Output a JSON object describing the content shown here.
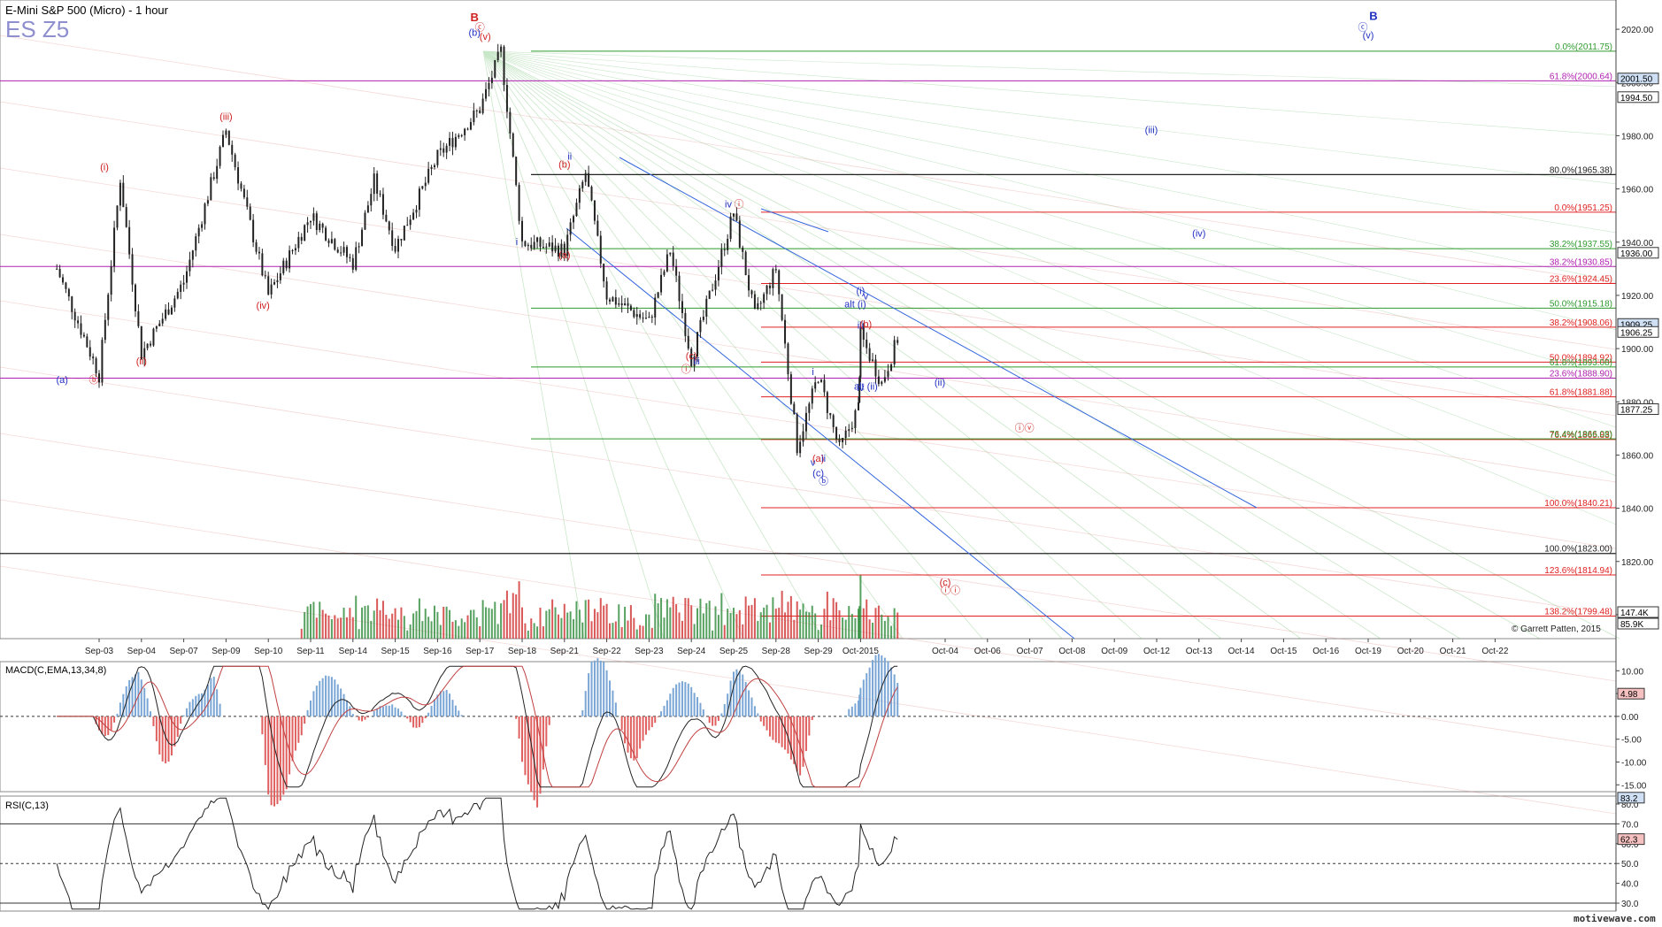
{
  "header": {
    "title": "E-Mini S&P 500 (Micro) - 1 hour",
    "symbol": "ES Z5"
  },
  "footer": {
    "copyright": "© Garrett Patten, 2015",
    "brand": "motivewave.com"
  },
  "colors": {
    "up": "#2e8b3a",
    "down": "#d03030",
    "candle": "#222222",
    "fib_green": "#2e9a2e",
    "fib_red": "#e02020",
    "fib_purple": "#b020b0",
    "wave_red": "#d02020",
    "wave_blue": "#2030c0",
    "channel": "#3366dd",
    "macd_hist_up": "#7aa6d6",
    "macd_hist_down": "#e06060"
  },
  "chart_data": [
    {
      "type": "candlestick",
      "panel": "price",
      "title": "E-Mini S&P 500 (Micro) - 1 hour",
      "ylim": [
        1791,
        2031
      ],
      "yticks": [
        2020.0,
        2000.0,
        1980.0,
        1960.0,
        1940.0,
        1920.0,
        1900.0,
        1880.0,
        1860.0,
        1840.0,
        1820.0,
        1800.0
      ],
      "x_labels": [
        "Sep-03",
        "Sep-04",
        "Sep-07",
        "Sep-09",
        "Sep-10",
        "Sep-11",
        "Sep-14",
        "Sep-15",
        "Sep-16",
        "Sep-17",
        "Sep-18",
        "Sep-21",
        "Sep-22",
        "Sep-23",
        "Sep-24",
        "Sep-25",
        "Sep-28",
        "Sep-29",
        "Oct-2015",
        "Oct-04",
        "Oct-06",
        "Oct-07",
        "Oct-08",
        "Oct-09",
        "Oct-12",
        "Oct-13",
        "Oct-14",
        "Oct-15",
        "Oct-16",
        "Oct-19",
        "Oct-20",
        "Oct-21",
        "Oct-22"
      ],
      "price_path": [
        {
          "date": "Sep-02",
          "close": 1930
        },
        {
          "date": "Sep-03",
          "close": 1890
        },
        {
          "date": "Sep-03",
          "close": 1964
        },
        {
          "date": "Sep-04",
          "close": 1898
        },
        {
          "date": "Sep-07",
          "close": 1925
        },
        {
          "date": "Sep-09",
          "close": 1982
        },
        {
          "date": "Sep-10",
          "close": 1920
        },
        {
          "date": "Sep-11",
          "close": 1950
        },
        {
          "date": "Sep-14",
          "close": 1932
        },
        {
          "date": "Sep-14",
          "close": 1963
        },
        {
          "date": "Sep-15",
          "close": 1938
        },
        {
          "date": "Sep-16",
          "close": 1972
        },
        {
          "date": "Sep-17",
          "close": 1990
        },
        {
          "date": "Sep-17",
          "close": 2011.75
        },
        {
          "date": "Sep-18",
          "close": 1940
        },
        {
          "date": "Sep-21",
          "close": 1937
        },
        {
          "date": "Sep-21",
          "close": 1966
        },
        {
          "date": "Sep-22",
          "close": 1920
        },
        {
          "date": "Sep-23",
          "close": 1910
        },
        {
          "date": "Sep-23",
          "close": 1937
        },
        {
          "date": "Sep-24",
          "close": 1896
        },
        {
          "date": "Sep-25",
          "close": 1951.25
        },
        {
          "date": "Sep-25",
          "close": 1912
        },
        {
          "date": "Sep-28",
          "close": 1930
        },
        {
          "date": "Sep-28",
          "close": 1863
        },
        {
          "date": "Sep-29",
          "close": 1890
        },
        {
          "date": "Sep-29",
          "close": 1862
        },
        {
          "date": "Sep-29",
          "close": 1878
        },
        {
          "date": "Sep-30",
          "close": 1905
        },
        {
          "date": "Sep-30",
          "close": 1887
        },
        {
          "date": "Sep-30",
          "close": 1907
        }
      ],
      "price_tags": [
        {
          "label": "2001.50",
          "value": 2001.5,
          "style": "blue"
        },
        {
          "label": "1994.50",
          "value": 1994.5,
          "style": "plain"
        },
        {
          "label": "1936.00",
          "value": 1936.0,
          "style": "plain"
        },
        {
          "label": "1909.25",
          "value": 1909.25,
          "style": "blue"
        },
        {
          "label": "1906.25",
          "value": 1906.25,
          "style": "plain"
        },
        {
          "label": "1877.25",
          "value": 1877.25,
          "style": "plain"
        }
      ],
      "volume_tags": [
        {
          "label": "147.4K"
        },
        {
          "label": "85.9K"
        }
      ],
      "fib_levels": [
        {
          "label": "0.0%(2011.75)",
          "value": 2011.75,
          "color": "green"
        },
        {
          "label": "61.8%(2000.64)",
          "value": 2000.64,
          "color": "purple"
        },
        {
          "label": "80.0%(1965.38)",
          "value": 1965.38,
          "color": "black"
        },
        {
          "label": "0.0%(1951.25)",
          "value": 1951.25,
          "color": "red"
        },
        {
          "label": "38.2%(1937.55)",
          "value": 1937.55,
          "color": "green"
        },
        {
          "label": "38.2%(1930.85)",
          "value": 1930.85,
          "color": "purple"
        },
        {
          "label": "23.6%(1924.45)",
          "value": 1924.45,
          "color": "red"
        },
        {
          "label": "50.0%(1915.18)",
          "value": 1915.18,
          "color": "green"
        },
        {
          "label": "38.2%(1908.06)",
          "value": 1908.06,
          "color": "red"
        },
        {
          "label": "50.0%(1894.92)",
          "value": 1894.92,
          "color": "red"
        },
        {
          "label": "61.8%(1893.08)",
          "value": 1893.08,
          "color": "green"
        },
        {
          "label": "23.6%(1888.90)",
          "value": 1888.9,
          "color": "purple"
        },
        {
          "label": "61.8%(1881.88)",
          "value": 1881.88,
          "color": "red"
        },
        {
          "label": "76.4%(1865.83)",
          "value": 1865.83,
          "color": "red"
        },
        {
          "label": "76.4%(1866.08)",
          "value": 1866.08,
          "color": "green"
        },
        {
          "label": "100.0%(1840.21)",
          "value": 1840.21,
          "color": "red"
        },
        {
          "label": "100.0%(1823.00)",
          "value": 1823.0,
          "color": "black"
        },
        {
          "label": "123.6%(1814.94)",
          "value": 1814.94,
          "color": "red"
        },
        {
          "label": "138.2%(1799.48)",
          "value": 1799.48,
          "color": "red"
        }
      ],
      "wave_labels": [
        {
          "text": "B",
          "date": "Sep-17",
          "value": 2023,
          "color": "red",
          "bold": true
        },
        {
          "text": "ⓒ",
          "date": "Sep-17",
          "value": 2019.5,
          "color": "red"
        },
        {
          "text": "(v)",
          "date": "Sep-17",
          "value": 2016,
          "color": "red"
        },
        {
          "text": "(b)",
          "date": "Sep-17",
          "value": 2017.5,
          "color": "blue"
        },
        {
          "text": "(iii)",
          "date": "Sep-09",
          "value": 1986,
          "color": "red"
        },
        {
          "text": "(i)",
          "date": "Sep-03",
          "value": 1967,
          "color": "red"
        },
        {
          "text": "(iv)",
          "date": "Sep-10",
          "value": 1915,
          "color": "red"
        },
        {
          "text": "(ii)",
          "date": "Sep-04",
          "value": 1894,
          "color": "red"
        },
        {
          "text": "(a)",
          "date": "Sep-02",
          "value": 1887,
          "color": "blue"
        },
        {
          "text": "ⓑ",
          "date": "Sep-03",
          "value": 1887,
          "color": "red"
        },
        {
          "text": "(b)",
          "date": "Sep-21",
          "value": 1968,
          "color": "red"
        },
        {
          "text": "ii",
          "date": "Sep-21",
          "value": 1971,
          "color": "blue"
        },
        {
          "text": "i",
          "date": "Sep-18",
          "value": 1939,
          "color": "blue"
        },
        {
          "text": "(a)",
          "date": "Sep-21",
          "value": 1934,
          "color": "red"
        },
        {
          "text": "ⓘ",
          "date": "Sep-25",
          "value": 1953,
          "color": "red"
        },
        {
          "text": "iv",
          "date": "Sep-25",
          "value": 1953,
          "color": "blue"
        },
        {
          "text": "(c)",
          "date": "Sep-24",
          "value": 1896,
          "color": "red"
        },
        {
          "text": "iii",
          "date": "Sep-24",
          "value": 1894,
          "color": "blue"
        },
        {
          "text": "ⓘ",
          "date": "Sep-24",
          "value": 1891,
          "color": "red"
        },
        {
          "text": "(i)",
          "date": "Sep-30",
          "value": 1920.5,
          "color": "blue"
        },
        {
          "text": "v",
          "date": "Sep-30",
          "value": 1918.5,
          "color": "blue"
        },
        {
          "text": "alt (i)",
          "date": "Sep-30",
          "value": 1915.5,
          "color": "blue"
        },
        {
          "text": "iii",
          "date": "Sep-30",
          "value": 1907.5,
          "color": "blue"
        },
        {
          "text": "(b)",
          "date": "Sep-30",
          "value": 1908,
          "color": "red"
        },
        {
          "text": "i",
          "date": "Sep-29",
          "value": 1890,
          "color": "blue"
        },
        {
          "text": "iv",
          "date": "Sep-30",
          "value": 1884,
          "color": "blue"
        },
        {
          "text": "alt (ii)",
          "date": "Sep-30",
          "value": 1884.5,
          "color": "blue"
        },
        {
          "text": "(ii)",
          "date": "Oct-04",
          "value": 1886,
          "color": "blue"
        },
        {
          "text": "(a)",
          "date": "Sep-29",
          "value": 1857.5,
          "color": "red"
        },
        {
          "text": "ii",
          "date": "Sep-29",
          "value": 1857.5,
          "color": "blue"
        },
        {
          "text": "v",
          "date": "Sep-29",
          "value": 1856,
          "color": "blue"
        },
        {
          "text": "(c)",
          "date": "Sep-29",
          "value": 1852,
          "color": "blue"
        },
        {
          "text": "ⓑ",
          "date": "Sep-29",
          "value": 1849,
          "color": "blue"
        },
        {
          "text": "ⓘⓥ",
          "date": "Oct-07",
          "value": 1869,
          "color": "red"
        },
        {
          "text": "(c)",
          "date": "Oct-04",
          "value": 1811,
          "color": "red"
        },
        {
          "text": "ⓘⓘ",
          "date": "Oct-04",
          "value": 1808,
          "color": "red"
        },
        {
          "text": "(iii)",
          "date": "Oct-12",
          "value": 1981,
          "color": "blue"
        },
        {
          "text": "(iv)",
          "date": "Oct-13",
          "value": 1942,
          "color": "blue"
        },
        {
          "text": "B",
          "date": "Oct-19",
          "value": 2023.5,
          "color": "blue",
          "bold": true
        },
        {
          "text": "ⓒ",
          "date": "Oct-19",
          "value": 2019.5,
          "color": "blue"
        },
        {
          "text": "(v)",
          "date": "Oct-19",
          "value": 2016.5,
          "color": "blue"
        }
      ]
    },
    {
      "type": "line",
      "panel": "macd",
      "title": "MACD(C,EMA,13,34,8)",
      "ylim": [
        -16.5,
        12
      ],
      "yticks": [
        10.0,
        5.0,
        0.0,
        -5.0,
        -10.0,
        -15.0
      ],
      "last_value_tag": "4.98"
    },
    {
      "type": "line",
      "panel": "rsi",
      "title": "RSI(C,13)",
      "ylim": [
        26,
        84
      ],
      "yticks": [
        80.0,
        70.0,
        60.0,
        50.0,
        40.0,
        30.0
      ],
      "last_value_tags": [
        "83.2",
        "62.3"
      ]
    }
  ]
}
